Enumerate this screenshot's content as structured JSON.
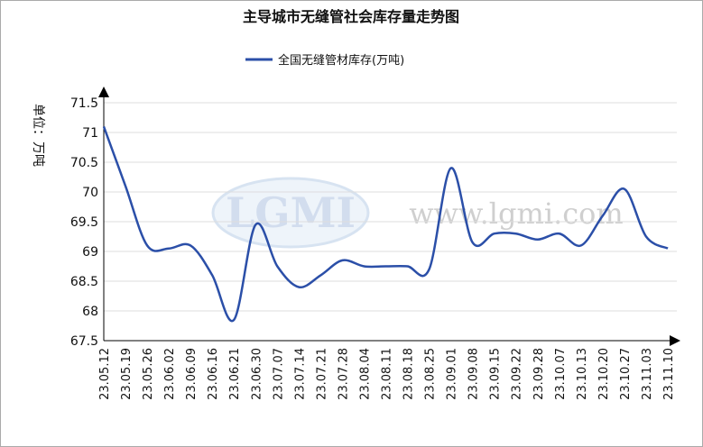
{
  "chart_data": {
    "type": "line",
    "title": "主导城市无缝管社会库存量走势图",
    "y_label": "单位：万吨",
    "logo": "LGMI",
    "watermark": "www.lgmi.com",
    "categories": [
      "23.05.12",
      "23.05.19",
      "23.05.26",
      "23.06.02",
      "23.06.09",
      "23.06.16",
      "23.06.21",
      "23.06.30",
      "23.07.07",
      "23.07.14",
      "23.07.21",
      "23.07.28",
      "23.08.04",
      "23.08.11",
      "23.08.18",
      "23.08.25",
      "23.09.01",
      "23.09.08",
      "23.09.15",
      "23.09.22",
      "23.09.28",
      "23.10.07",
      "23.10.13",
      "23.10.20",
      "23.10.27",
      "23.11.03",
      "23.11.10"
    ],
    "series": [
      {
        "name": "全国无缝管材库存(万吨)",
        "color": "#2b4fa8",
        "values": [
          71.1,
          70.1,
          69.1,
          69.05,
          69.1,
          68.6,
          67.85,
          69.45,
          68.75,
          68.4,
          68.6,
          68.85,
          68.75,
          68.75,
          68.75,
          68.7,
          70.4,
          69.15,
          69.3,
          69.3,
          69.2,
          69.3,
          69.1,
          69.6,
          70.05,
          69.25,
          69.05
        ]
      }
    ],
    "ylim": [
      67.5,
      71.5
    ],
    "yticks": [
      67.5,
      68,
      68.5,
      69,
      69.5,
      70,
      70.5,
      71,
      71.5
    ],
    "grid": true,
    "legend": "top"
  }
}
